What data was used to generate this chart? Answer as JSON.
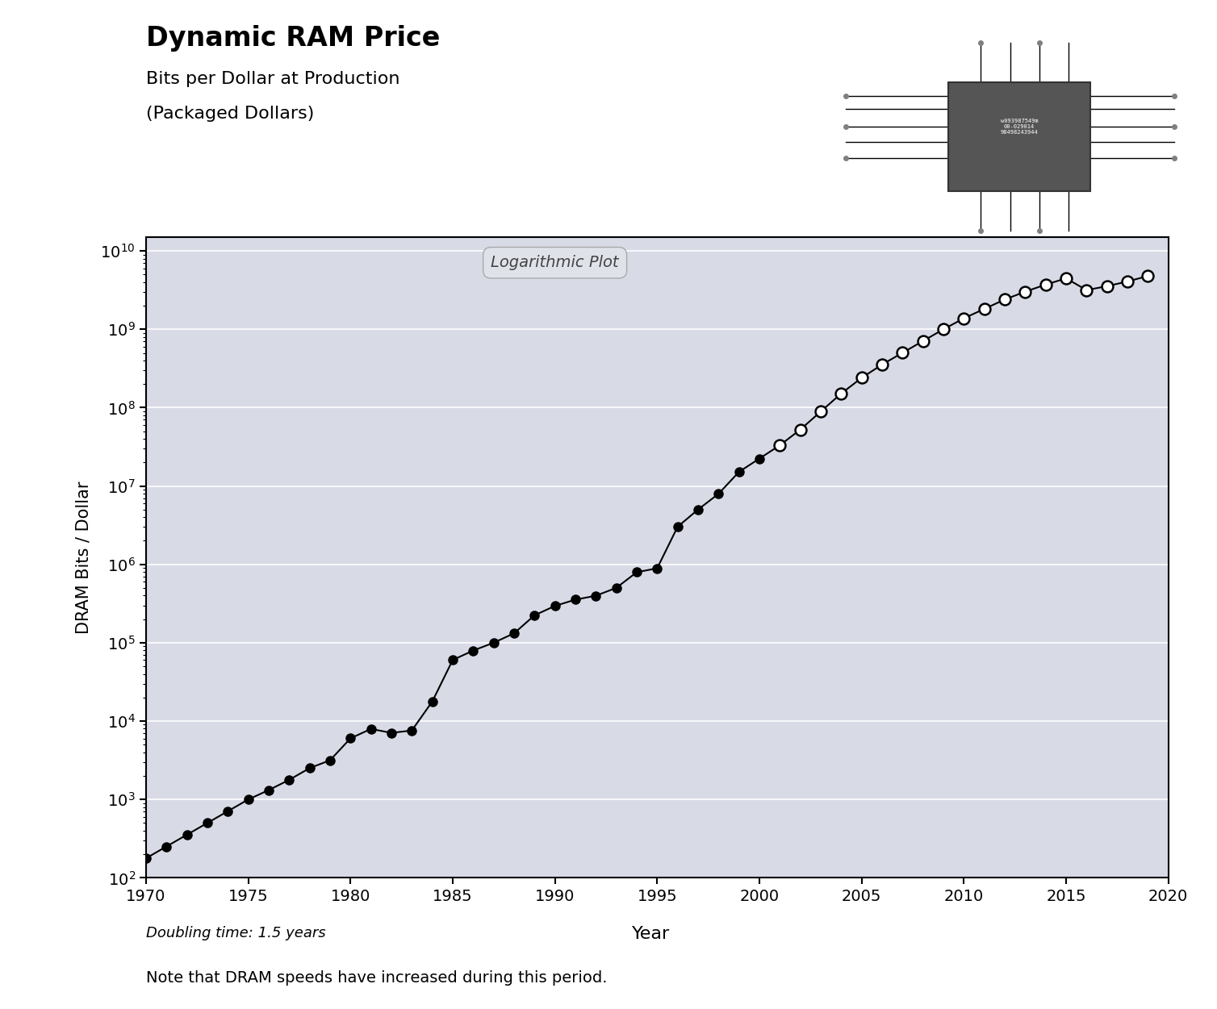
{
  "title": "Dynamic RAM Price",
  "subtitle1": "Bits per Dollar at Production",
  "subtitle2": "(Packaged Dollars)",
  "xlabel": "Year",
  "ylabel": "DRAM Bits / Dollar",
  "annotation": "Logarithmic Plot",
  "doubling_text": "Doubling time: 1.5 years",
  "note_text": "Note that DRAM speeds have increased during this period.",
  "bg_color": "#d8dbe6",
  "ylim_low": 100,
  "ylim_high": 15000000000.0,
  "xlim_low": 1970,
  "xlim_high": 2020,
  "filled_years": [
    1970,
    1971,
    1972,
    1973,
    1974,
    1975,
    1976,
    1977,
    1978,
    1979,
    1980,
    1981,
    1982,
    1983,
    1984,
    1985,
    1986,
    1987,
    1988,
    1989,
    1990,
    1991,
    1992,
    1993,
    1994,
    1995,
    1996,
    1997,
    1998,
    1999,
    2000,
    2001
  ],
  "filled_log10": [
    2.25,
    2.4,
    2.55,
    2.7,
    2.85,
    3.0,
    3.12,
    3.25,
    3.4,
    3.5,
    3.78,
    3.9,
    3.85,
    3.88,
    4.25,
    4.78,
    4.9,
    5.0,
    5.12,
    5.35,
    5.47,
    5.55,
    5.6,
    5.7,
    5.9,
    5.95,
    6.48,
    6.7,
    6.9,
    7.18,
    7.35,
    7.52
  ],
  "open_years": [
    2001,
    2002,
    2003,
    2004,
    2005,
    2006,
    2007,
    2008,
    2009,
    2010,
    2011,
    2012,
    2013,
    2014,
    2015,
    2016,
    2017,
    2018,
    2019
  ],
  "open_log10": [
    7.52,
    7.72,
    7.95,
    8.18,
    8.38,
    8.55,
    8.7,
    8.85,
    9.0,
    9.14,
    9.26,
    9.38,
    9.48,
    9.57,
    9.65,
    9.5,
    9.55,
    9.61,
    9.68
  ],
  "xtick_values": [
    1970,
    1975,
    1980,
    1985,
    1990,
    1995,
    2000,
    2005,
    2010,
    2015,
    2020
  ],
  "line_color": "#000000",
  "line_width": 1.5,
  "marker_size_filled": 8,
  "marker_size_open": 10,
  "grid_color": "#ffffff",
  "title_fontsize": 24,
  "subtitle_fontsize": 16,
  "tick_fontsize": 14,
  "ylabel_fontsize": 15,
  "xlabel_fontsize": 16,
  "annotation_fontsize": 14,
  "doubling_fontsize": 13,
  "note_fontsize": 14
}
